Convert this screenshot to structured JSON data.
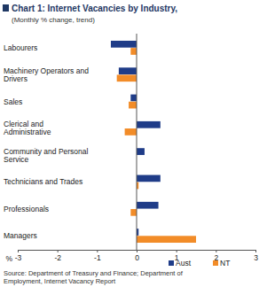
{
  "chart_data": {
    "type": "bar",
    "orientation": "horizontal",
    "title": "Chart 1: Internet Vacancies by Industry,",
    "subtitle": "(Monthly % change, trend)",
    "x_label": "%",
    "source": [
      "Source: Department of Treasury and Finance; Department of",
      "Employment, Internet Vacancy Report"
    ],
    "categories": [
      "Labourers",
      "Machinery Operators and Drivers",
      "Sales",
      "Clerical and Administrative",
      "Community and Personal Service",
      "Technicians and Trades",
      "Professionals",
      "Managers"
    ],
    "series": [
      {
        "name": "Aust",
        "color": "#1f3c88",
        "values": [
          -0.65,
          -0.45,
          -0.15,
          0.6,
          0.2,
          0.6,
          0.55,
          0.05
        ]
      },
      {
        "name": "NT",
        "color": "#f28c28",
        "values": [
          -0.15,
          -0.5,
          -0.2,
          -0.3,
          0,
          0.05,
          -0.15,
          1.5
        ]
      }
    ],
    "xlim": [
      -3,
      3
    ],
    "xticks": [
      -3,
      -2,
      -1,
      0,
      1,
      2,
      3
    ],
    "grid": false,
    "legend": "bottom"
  }
}
